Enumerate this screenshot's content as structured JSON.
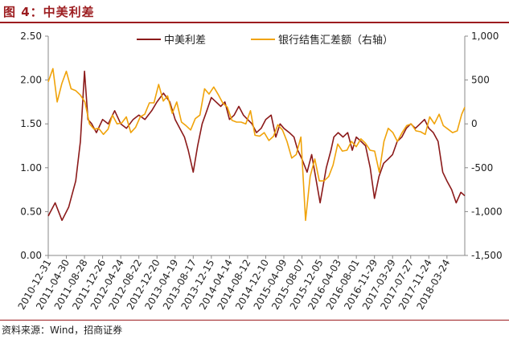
{
  "figure": {
    "title": "图 4：中美利差",
    "source": "资料来源：Wind，招商证券"
  },
  "colors": {
    "accent": "#9c1c1f",
    "series1": "#8b1a1a",
    "series2": "#f0a30a"
  },
  "chart_data": {
    "type": "line",
    "title": "",
    "xlabel": "",
    "ylabel": "",
    "y_left": {
      "lim": [
        0,
        2.5
      ],
      "ticks": [
        "0.00",
        "0.50",
        "1.00",
        "1.50",
        "2.00",
        "2.50"
      ]
    },
    "y_right": {
      "lim": [
        -1500,
        1000
      ],
      "ticks": [
        "-1,500",
        "-1,000",
        "-500",
        "0",
        "500",
        "1,000"
      ]
    },
    "x_lim": [
      "2010-12-31",
      "2018-07-20"
    ],
    "x_tick_labels": [
      "2010-12-31",
      "2011-04-30",
      "2011-08-28",
      "2011-12-26",
      "2012-04-24",
      "2012-08-22",
      "2012-12-20",
      "2013-04-19",
      "2013-08-17",
      "2013-12-15",
      "2014-04-14",
      "2014-08-12",
      "2014-12-10",
      "2015-04-09",
      "2015-08-07",
      "2015-12-05",
      "2016-04-03",
      "2016-08-01",
      "2016-11-29",
      "2017-03-29",
      "2017-07-27",
      "2017-11-24",
      "2018-03-24"
    ],
    "grid": false,
    "legend_position": "top",
    "series": [
      {
        "name": "中美利差",
        "axis": "left",
        "x": [
          "2010-12-31",
          "2011-02-15",
          "2011-04-01",
          "2011-05-15",
          "2011-07-01",
          "2011-08-01",
          "2011-08-28",
          "2011-09-20",
          "2011-10-15",
          "2011-11-15",
          "2011-12-26",
          "2012-02-01",
          "2012-03-15",
          "2012-04-24",
          "2012-06-01",
          "2012-07-15",
          "2012-08-22",
          "2012-10-01",
          "2012-11-15",
          "2012-12-20",
          "2013-02-01",
          "2013-03-15",
          "2013-04-19",
          "2013-05-20",
          "2013-06-20",
          "2013-07-15",
          "2013-08-17",
          "2013-09-15",
          "2013-10-15",
          "2013-11-15",
          "2013-12-15",
          "2014-01-15",
          "2014-02-15",
          "2014-03-15",
          "2014-04-14",
          "2014-05-15",
          "2014-06-15",
          "2014-07-15",
          "2014-08-12",
          "2014-09-10",
          "2014-10-10",
          "2014-11-10",
          "2014-12-10",
          "2015-01-15",
          "2015-02-15",
          "2015-03-15",
          "2015-04-09",
          "2015-05-15",
          "2015-06-15",
          "2015-07-10",
          "2015-08-07",
          "2015-09-10",
          "2015-10-10",
          "2015-11-05",
          "2015-12-05",
          "2016-01-15",
          "2016-02-15",
          "2016-03-05",
          "2016-04-03",
          "2016-05-05",
          "2016-06-05",
          "2016-07-05",
          "2016-08-01",
          "2016-09-01",
          "2016-10-01",
          "2016-11-01",
          "2016-11-29",
          "2016-12-29",
          "2017-01-29",
          "2017-02-28",
          "2017-03-29",
          "2017-04-29",
          "2017-05-29",
          "2017-06-28",
          "2017-07-27",
          "2017-08-27",
          "2017-09-27",
          "2017-10-27",
          "2017-11-24",
          "2017-12-24",
          "2018-01-24",
          "2018-02-24",
          "2018-03-24",
          "2018-04-24",
          "2018-05-24",
          "2018-06-24",
          "2018-07-20"
        ],
        "values": [
          0.45,
          0.6,
          0.4,
          0.55,
          0.85,
          1.3,
          2.1,
          1.55,
          1.5,
          1.4,
          1.55,
          1.5,
          1.65,
          1.5,
          1.45,
          1.55,
          1.6,
          1.55,
          1.65,
          1.75,
          1.85,
          1.75,
          1.55,
          1.45,
          1.35,
          1.2,
          0.95,
          1.25,
          1.5,
          1.65,
          1.8,
          1.75,
          1.7,
          1.75,
          1.55,
          1.6,
          1.7,
          1.6,
          1.55,
          1.5,
          1.4,
          1.45,
          1.55,
          1.6,
          1.35,
          1.5,
          1.45,
          1.4,
          1.35,
          1.2,
          1.1,
          0.95,
          1.15,
          0.9,
          0.6,
          1.0,
          1.2,
          1.35,
          1.4,
          1.35,
          1.4,
          1.2,
          1.35,
          1.3,
          1.25,
          1.0,
          0.65,
          0.9,
          1.05,
          1.1,
          1.15,
          1.3,
          1.35,
          1.45,
          1.5,
          1.45,
          1.5,
          1.55,
          1.45,
          1.4,
          1.3,
          0.95,
          0.85,
          0.75,
          0.6,
          0.72,
          0.68
        ]
      },
      {
        "name": "银行结售汇差额（右轴）",
        "axis": "right",
        "x": [
          "2010-12-31",
          "2011-01-31",
          "2011-02-28",
          "2011-03-31",
          "2011-04-30",
          "2011-05-31",
          "2011-06-30",
          "2011-07-31",
          "2011-08-31",
          "2011-09-30",
          "2011-10-31",
          "2011-11-30",
          "2011-12-31",
          "2012-01-31",
          "2012-02-29",
          "2012-03-31",
          "2012-04-30",
          "2012-05-31",
          "2012-06-30",
          "2012-07-31",
          "2012-08-31",
          "2012-09-30",
          "2012-10-31",
          "2012-11-30",
          "2012-12-31",
          "2013-01-31",
          "2013-02-28",
          "2013-03-31",
          "2013-04-30",
          "2013-05-31",
          "2013-06-30",
          "2013-07-31",
          "2013-08-31",
          "2013-09-30",
          "2013-10-31",
          "2013-11-30",
          "2013-12-31",
          "2014-01-31",
          "2014-02-28",
          "2014-03-31",
          "2014-04-30",
          "2014-05-31",
          "2014-06-30",
          "2014-07-31",
          "2014-08-31",
          "2014-09-30",
          "2014-10-31",
          "2014-11-30",
          "2014-12-31",
          "2015-01-31",
          "2015-02-28",
          "2015-03-31",
          "2015-04-30",
          "2015-05-31",
          "2015-06-30",
          "2015-07-31",
          "2015-08-31",
          "2015-09-30",
          "2015-10-31",
          "2015-11-30",
          "2015-12-31",
          "2016-01-31",
          "2016-02-29",
          "2016-03-31",
          "2016-04-30",
          "2016-05-31",
          "2016-06-30",
          "2016-07-31",
          "2016-08-31",
          "2016-09-30",
          "2016-10-31",
          "2016-11-30",
          "2016-12-31",
          "2017-01-31",
          "2017-02-28",
          "2017-03-31",
          "2017-04-30",
          "2017-05-31",
          "2017-06-30",
          "2017-07-31",
          "2017-08-31",
          "2017-09-30",
          "2017-10-31",
          "2017-11-30",
          "2017-12-31",
          "2018-01-31",
          "2018-02-28",
          "2018-03-31",
          "2018-04-30",
          "2018-05-31",
          "2018-06-30",
          "2018-07-20"
        ],
        "values": [
          480,
          630,
          250,
          460,
          600,
          400,
          380,
          330,
          250,
          0,
          -60,
          -50,
          -120,
          -60,
          100,
          0,
          10,
          80,
          -100,
          -40,
          80,
          110,
          240,
          240,
          450,
          260,
          320,
          120,
          250,
          20,
          -20,
          -70,
          60,
          100,
          400,
          340,
          420,
          330,
          240,
          190,
          40,
          20,
          20,
          0,
          150,
          -130,
          -140,
          -100,
          -190,
          -140,
          -10,
          -70,
          -200,
          -390,
          -350,
          -150,
          -1100,
          -600,
          -400,
          -650,
          -650,
          -600,
          -470,
          -230,
          -310,
          -300,
          -200,
          -260,
          -170,
          -220,
          -300,
          -310,
          -550,
          -200,
          -50,
          -100,
          -200,
          -100,
          -20,
          0,
          -80,
          -90,
          -120,
          80,
          0,
          110,
          -20,
          -60,
          -100,
          -80,
          110,
          190
        ]
      }
    ]
  }
}
